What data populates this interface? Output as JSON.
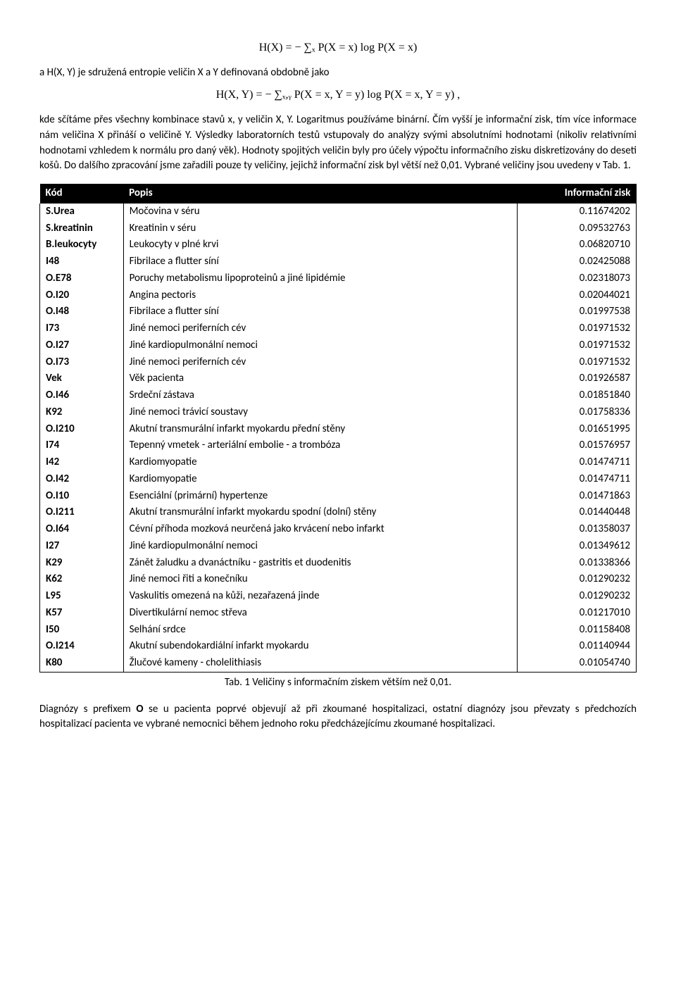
{
  "formula1": "H(X) = − ∑ₓ P(X = x) log P(X = x)",
  "para1_a": "a H(X, Y) je sdružená entropie veličin X a Y definovaná obdobně jako",
  "formula2": "H(X, Y) = − ∑ₓ,ᵧ P(X = x, Y = y) log P(X = x, Y = y) ,",
  "para2": "kde sčítáme přes všechny kombinace stavů x, y veličin X, Y. Logaritmus používáme binární. Čím vyšší je informační zisk, tím více informace nám veličina X přináší o veličině Y. Výsledky laboratorních testů vstupovaly do analýzy svými absolutními hodnotami (nikoliv relativními hodnotami vzhledem k normálu pro daný věk). Hodnoty spojitých veličin byly pro účely výpočtu informačního zisku diskretizovány do deseti košů. Do dalšího zpracování jsme zařadili pouze ty veličiny, jejichž informační zisk byl větší než 0,01. Vybrané veličiny jsou uvedeny v Tab. 1.",
  "table": {
    "headers": [
      "Kód",
      "Popis",
      "Informační zisk"
    ],
    "rows": [
      [
        "S.Urea",
        "Močovina v séru",
        "0.11674202"
      ],
      [
        "S.kreatinin",
        "Kreatinin v séru",
        "0.09532763"
      ],
      [
        "B.leukocyty",
        "Leukocyty v plné krvi",
        "0.06820710"
      ],
      [
        "I48",
        "Fibrilace a flutter síní",
        "0.02425088"
      ],
      [
        "O.E78",
        "Poruchy metabolismu lipoproteinů a jiné lipidémie",
        "0.02318073"
      ],
      [
        "O.I20",
        "Angina pectoris",
        "0.02044021"
      ],
      [
        "O.I48",
        "Fibrilace a flutter síní",
        "0.01997538"
      ],
      [
        "I73",
        "Jiné nemoci periferních cév",
        "0.01971532"
      ],
      [
        "O.I27",
        "Jiné kardiopulmonální nemoci",
        "0.01971532"
      ],
      [
        "O.I73",
        "Jiné nemoci periferních cév",
        "0.01971532"
      ],
      [
        "Vek",
        "Věk pacienta",
        "0.01926587"
      ],
      [
        "O.I46",
        "Srdeční zástava",
        "0.01851840"
      ],
      [
        "K92",
        "Jiné nemoci trávicí soustavy",
        "0.01758336"
      ],
      [
        "O.I210",
        "Akutní transmurální infarkt myokardu přední stěny",
        "0.01651995"
      ],
      [
        "I74",
        "Tepenný vmetek - arteriální embolie - a trombóza",
        "0.01576957"
      ],
      [
        "I42",
        "Kardiomyopatie",
        "0.01474711"
      ],
      [
        "O.I42",
        "Kardiomyopatie",
        "0.01474711"
      ],
      [
        "O.I10",
        "Esenciální (primární) hypertenze",
        "0.01471863"
      ],
      [
        "O.I211",
        "Akutní transmurální infarkt myokardu spodní (dolní) stěny",
        "0.01440448"
      ],
      [
        "O.I64",
        "Cévní příhoda mozková neurčená jako krvácení nebo infarkt",
        "0.01358037"
      ],
      [
        "I27",
        "Jiné kardiopulmonální nemoci",
        "0.01349612"
      ],
      [
        "K29",
        "Zánět žaludku a dvanáctníku - gastritis et duodenitis",
        "0.01338366"
      ],
      [
        "K62",
        "Jiné nemoci řiti a konečníku",
        "0.01290232"
      ],
      [
        "L95",
        "Vaskulitis omezená na kůži, nezařazená jinde",
        "0.01290232"
      ],
      [
        "K57",
        "Divertikulární nemoc střeva",
        "0.01217010"
      ],
      [
        "I50",
        "Selhání srdce",
        "0.01158408"
      ],
      [
        "O.I214",
        "Akutní subendokardiální infarkt myokardu",
        "0.01140944"
      ],
      [
        "K80",
        "Žlučové kameny - cholelithiasis",
        "0.01054740"
      ]
    ]
  },
  "caption": "Tab. 1 Veličiny s informačním ziskem větším než 0,01.",
  "para3": "Diagnózy s prefixem O se u pacienta poprvé objevují až při zkoumané hospitalizaci, ostatní diagnózy jsou převzaty s předchozích hospitalizací pacienta ve vybrané nemocnici během jednoho roku předcházejícímu zkoumané hospitalizaci."
}
